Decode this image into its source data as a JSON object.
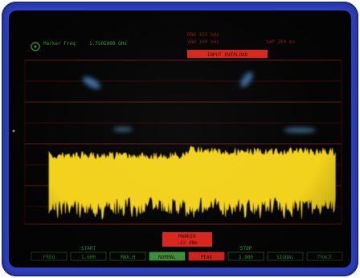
{
  "header": {
    "marker_label": "Marker Freq",
    "marker_value": "1.7505000 GHz",
    "status_line_1": "RBW 100 kHz",
    "status_line_2": "VBW 100 kHz",
    "status_line_3": "SWP 200 ms",
    "status_badge": "INPUT OVERLOAD"
  },
  "marker_readout": {
    "line1": "MARKER",
    "line2": "-22 dBm"
  },
  "softkeys": [
    {
      "top": "",
      "label": "FREQ"
    },
    {
      "top": "START",
      "label": "1.600"
    },
    {
      "top": "",
      "label": "MAX.H"
    },
    {
      "top": "",
      "label": "NORMAL"
    },
    {
      "top": "",
      "label": "PEAK"
    },
    {
      "top": "STOP",
      "label": "1.900"
    },
    {
      "top": "",
      "label": "SIGNAL"
    },
    {
      "top": "",
      "label": "TRACE"
    }
  ],
  "colors": {
    "trace": "#f2d21c",
    "grid": "#7a1c1c",
    "text": "#3e9a3e",
    "badge": "#d9271d",
    "softkey_active": "#3e9a3e",
    "softkey_alert": "#d9271d",
    "glare": "#4f8fd6"
  },
  "icons": {
    "marker": "marker-circle-icon"
  }
}
